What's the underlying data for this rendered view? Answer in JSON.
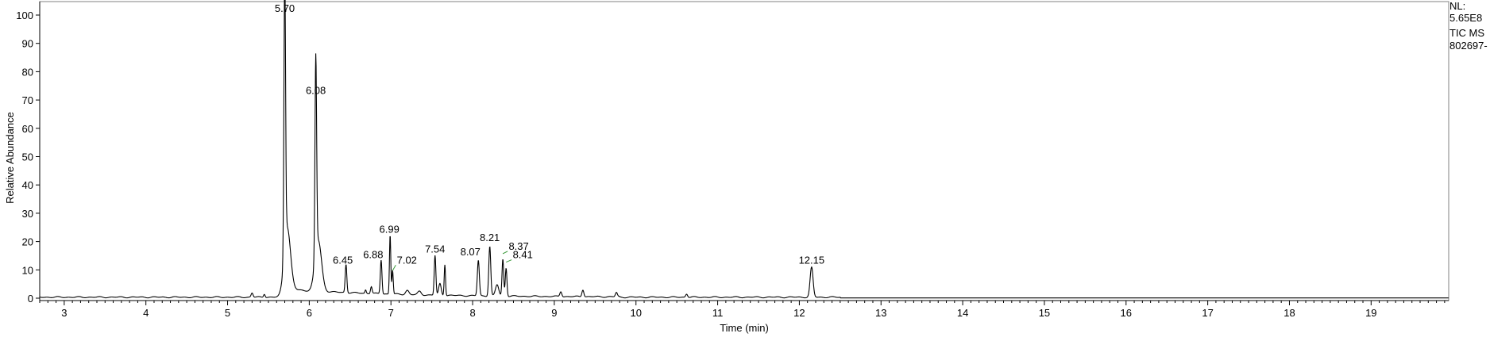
{
  "chart_data": {
    "type": "line",
    "xlabel": "Time (min)",
    "ylabel": "Relative Abundance",
    "xlim": [
      2.7,
      19.95
    ],
    "ylim": [
      0,
      100
    ],
    "x_ticks": [
      "3",
      "4",
      "5",
      "6",
      "7",
      "8",
      "9",
      "10",
      "11",
      "12",
      "13",
      "14",
      "15",
      "16",
      "17",
      "18",
      "19"
    ],
    "y_ticks": [
      "0",
      "10",
      "20",
      "30",
      "40",
      "50",
      "60",
      "70",
      "80",
      "90",
      "100"
    ],
    "grid": false,
    "peak_labels": [
      {
        "text": "5.70",
        "x": 5.7,
        "y": 100,
        "connector": false
      },
      {
        "text": "6.08",
        "x": 6.08,
        "y": 71,
        "connector": false
      },
      {
        "text": "6.45",
        "x": 6.45,
        "y": 11,
        "connector": false
      },
      {
        "text": "6.88",
        "x": 6.88,
        "y": 13,
        "connector": false
      },
      {
        "text": "6.99",
        "x": 6.99,
        "y": 22,
        "connector": false
      },
      {
        "text": "7.02",
        "x": 7.02,
        "y": 10,
        "connector": true
      },
      {
        "text": "7.54",
        "x": 7.54,
        "y": 15,
        "connector": false
      },
      {
        "text": "8.07",
        "x": 8.07,
        "y": 14,
        "connector": false
      },
      {
        "text": "8.21",
        "x": 8.21,
        "y": 19,
        "connector": false
      },
      {
        "text": "8.37",
        "x": 8.37,
        "y": 16,
        "connector": true
      },
      {
        "text": "8.41",
        "x": 8.41,
        "y": 13,
        "connector": true
      },
      {
        "text": "12.15",
        "x": 12.15,
        "y": 11,
        "connector": false
      }
    ],
    "peaks": [
      {
        "x": 5.3,
        "h": 1.5,
        "w": 0.012
      },
      {
        "x": 5.45,
        "h": 1.2,
        "w": 0.01
      },
      {
        "x": 5.7,
        "h": 99.3,
        "w": 0.01
      },
      {
        "x": 5.73,
        "h": 22,
        "w": 0.04
      },
      {
        "x": 6.08,
        "h": 70.3,
        "w": 0.01
      },
      {
        "x": 6.11,
        "h": 18,
        "w": 0.04
      },
      {
        "x": 6.45,
        "h": 10,
        "w": 0.01
      },
      {
        "x": 6.69,
        "h": 1.2,
        "w": 0.008
      },
      {
        "x": 6.76,
        "h": 2.5,
        "w": 0.01
      },
      {
        "x": 6.88,
        "h": 12,
        "w": 0.01
      },
      {
        "x": 6.99,
        "h": 21,
        "w": 0.008
      },
      {
        "x": 7.02,
        "h": 8.5,
        "w": 0.008
      },
      {
        "x": 7.2,
        "h": 1.5,
        "w": 0.02
      },
      {
        "x": 7.35,
        "h": 1.2,
        "w": 0.02
      },
      {
        "x": 7.54,
        "h": 14,
        "w": 0.01
      },
      {
        "x": 7.6,
        "h": 4,
        "w": 0.015
      },
      {
        "x": 7.66,
        "h": 11,
        "w": 0.008
      },
      {
        "x": 8.07,
        "h": 12.5,
        "w": 0.012
      },
      {
        "x": 8.21,
        "h": 17.5,
        "w": 0.012
      },
      {
        "x": 8.3,
        "h": 4,
        "w": 0.02
      },
      {
        "x": 8.37,
        "h": 13,
        "w": 0.01
      },
      {
        "x": 8.41,
        "h": 10,
        "w": 0.01
      },
      {
        "x": 9.08,
        "h": 1.8,
        "w": 0.012
      },
      {
        "x": 9.35,
        "h": 2.5,
        "w": 0.012
      },
      {
        "x": 9.76,
        "h": 1.5,
        "w": 0.012
      },
      {
        "x": 10.62,
        "h": 1.2,
        "w": 0.012
      },
      {
        "x": 12.15,
        "h": 10.5,
        "w": 0.018
      }
    ]
  },
  "side_label": {
    "line1": "NL:",
    "line2": "5.65E8",
    "line3": "TIC MS",
    "line4": "802697-"
  }
}
